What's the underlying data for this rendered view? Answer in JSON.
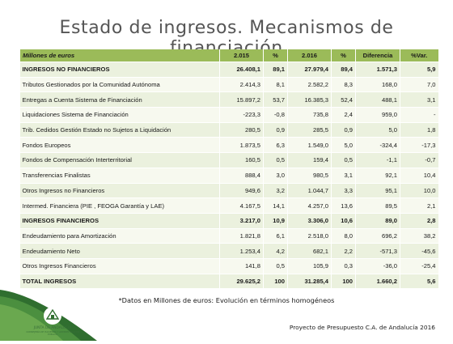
{
  "title": "Estado de ingresos. Mecanismos de financiación",
  "table": {
    "columns": [
      "Millones de euros",
      "2.015",
      "%",
      "2.016",
      "%",
      "Diferencia",
      "%Var."
    ],
    "rows": [
      {
        "label": "INGRESOS NO FINANCIEROS",
        "bold": true,
        "v2015": "26.408,1",
        "p2015": "89,1",
        "v2016": "27.979,4",
        "p2016": "89,4",
        "diff": "1.571,3",
        "var": "5,9"
      },
      {
        "label": "Tributos Gestionados por la Comunidad Autónoma",
        "bold": false,
        "v2015": "2.414,3",
        "p2015": "8,1",
        "v2016": "2.582,2",
        "p2016": "8,3",
        "diff": "168,0",
        "var": "7,0"
      },
      {
        "label": "Entregas a Cuenta Sistema de Financiación",
        "bold": false,
        "v2015": "15.897,2",
        "p2015": "53,7",
        "v2016": "16.385,3",
        "p2016": "52,4",
        "diff": "488,1",
        "var": "3,1"
      },
      {
        "label": "Liquidaciones Sistema de Financiación",
        "bold": false,
        "v2015": "-223,3",
        "p2015": "-0,8",
        "v2016": "735,8",
        "p2016": "2,4",
        "diff": "959,0",
        "var": "-"
      },
      {
        "label": "Trib. Cedidos Gestión Estado no Sujetos a Liquidación",
        "bold": false,
        "v2015": "280,5",
        "p2015": "0,9",
        "v2016": "285,5",
        "p2016": "0,9",
        "diff": "5,0",
        "var": "1,8"
      },
      {
        "label": "Fondos Europeos",
        "bold": false,
        "v2015": "1.873,5",
        "p2015": "6,3",
        "v2016": "1.549,0",
        "p2016": "5,0",
        "diff": "-324,4",
        "var": "-17,3"
      },
      {
        "label": "Fondos de Compensación Interterritorial",
        "bold": false,
        "v2015": "160,5",
        "p2015": "0,5",
        "v2016": "159,4",
        "p2016": "0,5",
        "diff": "-1,1",
        "var": "-0,7"
      },
      {
        "label": "Transferencias Finalistas",
        "bold": false,
        "v2015": "888,4",
        "p2015": "3,0",
        "v2016": "980,5",
        "p2016": "3,1",
        "diff": "92,1",
        "var": "10,4"
      },
      {
        "label": "Otros Ingresos no Financieros",
        "bold": false,
        "v2015": "949,6",
        "p2015": "3,2",
        "v2016": "1.044,7",
        "p2016": "3,3",
        "diff": "95,1",
        "var": "10,0"
      },
      {
        "label": "Intermed. Financiera (PIE , FEOGA Garantía y LAE)",
        "bold": false,
        "v2015": "4.167,5",
        "p2015": "14,1",
        "v2016": "4.257,0",
        "p2016": "13,6",
        "diff": "89,5",
        "var": "2,1"
      },
      {
        "label": "INGRESOS FINANCIEROS",
        "bold": true,
        "v2015": "3.217,0",
        "p2015": "10,9",
        "v2016": "3.306,0",
        "p2016": "10,6",
        "diff": "89,0",
        "var": "2,8"
      },
      {
        "label": "Endeudamiento para Amortización",
        "bold": false,
        "v2015": "1.821,8",
        "p2015": "6,1",
        "v2016": "2.518,0",
        "p2016": "8,0",
        "diff": "696,2",
        "var": "38,2"
      },
      {
        "label": "Endeudamiento Neto",
        "bold": false,
        "v2015": "1.253,4",
        "p2015": "4,2",
        "v2016": "682,1",
        "p2016": "2,2",
        "diff": "-571,3",
        "var": "-45,6"
      },
      {
        "label": "Otros Ingresos Financieros",
        "bold": false,
        "v2015": "141,8",
        "p2015": "0,5",
        "v2016": "105,9",
        "p2016": "0,3",
        "diff": "-36,0",
        "var": "-25,4"
      },
      {
        "label": "TOTAL INGRESOS",
        "bold": true,
        "v2015": "29.625,2",
        "p2015": "100",
        "v2016": "31.285,4",
        "p2016": "100",
        "diff": "1.660,2",
        "var": "5,6"
      }
    ]
  },
  "note": "*Datos en Millones de euros: Evolución en términos homogéneos",
  "footer": "Proyecto de Presupuesto C.A. de Andalucía 2016",
  "logo": {
    "line1": "JUNTA DE ANDALUCIA",
    "line2": "CONSEJERÍA DE HACIENDA Y ADMINISTRACIÓN PÚBLICA",
    "icon": "junta-andalucia-emblem-icon"
  },
  "colors": {
    "header": "#9bbb59",
    "row_odd": "#ebf1de",
    "row_even": "#f7f9ef",
    "decor_green": "#3a7d3a"
  }
}
